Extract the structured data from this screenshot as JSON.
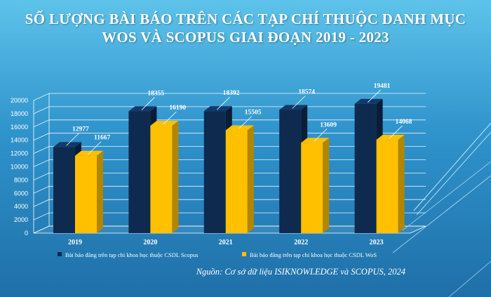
{
  "title": {
    "line1": "SỐ LƯỢNG BÀI BÁO TRÊN CÁC TẠP CHÍ THUỘC DANH MỤC",
    "line2": "WOS VÀ SCOPUS GIAI ĐOẠN 2019 - 2023"
  },
  "source": "Nguồn: Cơ sở dữ liệu ISIKNOWLEDGE và SCOPUS, 2024",
  "colors": {
    "scopus": "#0e2a4f",
    "wos": "#ffc000",
    "grid": "#ffffff",
    "text": "#ffffff"
  },
  "chart_data": {
    "type": "bar",
    "categories": [
      "2019",
      "2020",
      "2021",
      "2022",
      "2023"
    ],
    "series": [
      {
        "name": "Bài báo đăng trên tạp chí khoa học thuộc CSDL Scopus",
        "values": [
          12977,
          18355,
          18392,
          18574,
          19481
        ]
      },
      {
        "name": "Bài báo đăng trên tạp chí khoa học thuộc CSDL WoS",
        "values": [
          11667,
          16190,
          15505,
          13609,
          14068
        ]
      }
    ],
    "yticks": [
      0,
      2000,
      4000,
      6000,
      8000,
      10000,
      12000,
      14000,
      16000,
      18000,
      20000
    ],
    "ylim": [
      0,
      20000
    ],
    "grid": true,
    "legend": "bottom",
    "style": "3d-column"
  }
}
